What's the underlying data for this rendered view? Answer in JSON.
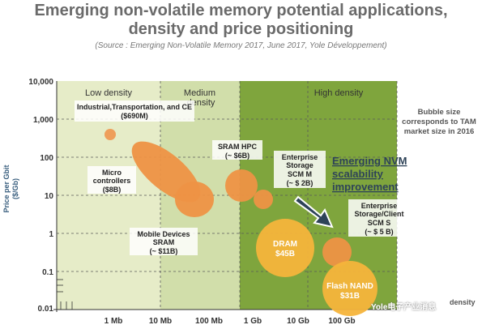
{
  "header": {
    "title_line1": "Emerging non-volatile memory potential applications,",
    "title_line2": "density and price positioning",
    "source": "(Source : Emerging Non-Volatile Memory 2017, June 2017, Yole Développement)"
  },
  "watermark": "Yole电子产业消息",
  "note": "Bubble size corresponds to TAM market size in 2016",
  "chart_data": {
    "type": "scatter",
    "x_scale": "log",
    "y_scale": "log",
    "ylabel": "Price per Gbit ($/Gb)",
    "x_ticks": [
      "1 Mb",
      "10 Mb",
      "100 Mb",
      "1 Gb",
      "10 Gb",
      "100 Gb"
    ],
    "y_ticks": [
      "10,000",
      "1,000",
      "100",
      "10",
      "1",
      "0.1",
      "0.01"
    ],
    "x_extra_label": "density",
    "regions": [
      {
        "label": "Low density",
        "color": "#e6ecc8"
      },
      {
        "label": "Medium density",
        "color": "#d1deaa"
      },
      {
        "label": "High density",
        "color": "#7fa53d"
      }
    ],
    "arrow_label": "Emerging NVM scalability improvement",
    "series": [
      {
        "name": "Industrial, Transportation, and CE",
        "label": "Industrial,Transportation, and CE ($690M)",
        "x": "~3 Mb",
        "y": 350,
        "color": "#ee9a55"
      },
      {
        "name": "Micro controllers",
        "label": "Micro controllers ($8B)",
        "x": "~20 Mb",
        "y": 60,
        "color": "#ee9244"
      },
      {
        "name": "Mobile Devices SRAM",
        "label": "Mobile Devices SRAM (~ $11B)",
        "x": "~70 Mb",
        "y": 8,
        "color": "#ee9244"
      },
      {
        "name": "SRAM HPC",
        "label": "SRAM HPC (~ $6B)",
        "x": "~1 Gb",
        "y": 20,
        "color": "#ee9244"
      },
      {
        "name": "Enterprise Storage SCM M",
        "label": "Enterprise Storage SCM M (~ $ 2B)",
        "x": "~3 Gb",
        "y": 10,
        "color": "#ee9244"
      },
      {
        "name": "DRAM",
        "label": "DRAM $45B",
        "x": "~20 Gb",
        "y": 0.35,
        "color": "#f6b43b"
      },
      {
        "name": "Enterprise Storage/Client SCM S",
        "label": "Enterprise Storage/Client SCM S (~ $ 5 B)",
        "x": "~120 Gb",
        "y": 0.35,
        "color": "#ee9244"
      },
      {
        "name": "Flash NAND",
        "label": "Flash NAND $31B",
        "x": "~100 Gb+",
        "y": 0.05,
        "color": "#f6b43b"
      }
    ]
  }
}
